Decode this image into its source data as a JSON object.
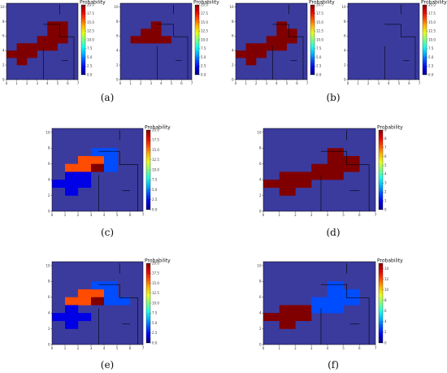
{
  "chart_data": [
    {
      "panel": "(a)",
      "type": "heatmap",
      "grid": {
        "cols": 7,
        "rows": 10
      },
      "xlim": [
        0,
        7
      ],
      "ylim": [
        0,
        10.5
      ],
      "xticks": [
        "0",
        "1",
        "2",
        "3",
        "4",
        "5",
        "6",
        "7"
      ],
      "yticks": [
        "0",
        "2",
        "4",
        "6",
        "8",
        "10"
      ],
      "subplots": [
        {
          "colorbar": {
            "title": "Probability",
            "vmin": 0,
            "vmax": 20.0,
            "ticks": [
              "0.0",
              "2.5",
              "5.0",
              "7.5",
              "10.0",
              "12.5",
              "15.0",
              "17.5",
              "20.0"
            ]
          },
          "cells": [
            {
              "x": 0,
              "y": 3,
              "value": 20
            },
            {
              "x": 1,
              "y": 3,
              "value": 20
            },
            {
              "x": 2,
              "y": 3,
              "value": 20
            },
            {
              "x": 1,
              "y": 2,
              "value": 20
            },
            {
              "x": 1,
              "y": 4,
              "value": 20
            },
            {
              "x": 2,
              "y": 4,
              "value": 20
            },
            {
              "x": 3,
              "y": 4,
              "value": 20
            },
            {
              "x": 4,
              "y": 4,
              "value": 20
            },
            {
              "x": 3,
              "y": 5,
              "value": 20
            },
            {
              "x": 4,
              "y": 5,
              "value": 20
            },
            {
              "x": 5,
              "y": 5,
              "value": 20
            },
            {
              "x": 4,
              "y": 6,
              "value": 20
            },
            {
              "x": 5,
              "y": 6,
              "value": 20
            },
            {
              "x": 4,
              "y": 7,
              "value": 20
            },
            {
              "x": 5,
              "y": 7,
              "value": 20
            }
          ]
        },
        {
          "colorbar": {
            "title": "Probability",
            "vmin": 0,
            "vmax": 20.0,
            "ticks": [
              "0.0",
              "2.5",
              "5.0",
              "7.5",
              "10.0",
              "12.5",
              "15.0",
              "17.5",
              "20.0"
            ]
          },
          "cells": [
            {
              "x": 1,
              "y": 5,
              "value": 20
            },
            {
              "x": 2,
              "y": 5,
              "value": 20
            },
            {
              "x": 3,
              "y": 5,
              "value": 20
            },
            {
              "x": 4,
              "y": 5,
              "value": 20
            },
            {
              "x": 2,
              "y": 6,
              "value": 20
            },
            {
              "x": 3,
              "y": 6,
              "value": 20
            },
            {
              "x": 3,
              "y": 7,
              "value": 20
            }
          ]
        }
      ]
    },
    {
      "panel": "(b)",
      "type": "heatmap",
      "grid": {
        "cols": 7,
        "rows": 10
      },
      "xlim": [
        0,
        7
      ],
      "ylim": [
        0,
        10.5
      ],
      "xticks": [
        "0",
        "1",
        "2",
        "3",
        "4",
        "5",
        "6",
        "7"
      ],
      "yticks": [
        "0",
        "2",
        "4",
        "6",
        "8",
        "10"
      ],
      "subplots": [
        {
          "colorbar": {
            "title": "Probability",
            "vmin": 0,
            "vmax": 20.0,
            "ticks": [
              "0.0",
              "2.5",
              "5.0",
              "7.5",
              "10.0",
              "12.5",
              "15.0",
              "17.5",
              "20.0"
            ]
          },
          "cells": [
            {
              "x": 0,
              "y": 3,
              "value": 20
            },
            {
              "x": 1,
              "y": 3,
              "value": 20
            },
            {
              "x": 2,
              "y": 3,
              "value": 20
            },
            {
              "x": 1,
              "y": 2,
              "value": 20
            },
            {
              "x": 1,
              "y": 4,
              "value": 20
            },
            {
              "x": 2,
              "y": 4,
              "value": 20
            },
            {
              "x": 3,
              "y": 4,
              "value": 20
            },
            {
              "x": 4,
              "y": 4,
              "value": 20
            },
            {
              "x": 3,
              "y": 5,
              "value": 20
            },
            {
              "x": 4,
              "y": 5,
              "value": 20
            },
            {
              "x": 5,
              "y": 5,
              "value": 20
            },
            {
              "x": 4,
              "y": 6,
              "value": 20
            },
            {
              "x": 5,
              "y": 6,
              "value": 20
            },
            {
              "x": 4,
              "y": 7,
              "value": 20
            }
          ]
        },
        {
          "colorbar": {
            "title": "Probability",
            "vmin": 0,
            "vmax": 20.0,
            "ticks": [
              "0.0",
              "2.5",
              "5.0",
              "7.5",
              "10.0",
              "12.5",
              "15.0",
              "17.5",
              "20.0"
            ]
          },
          "cells": []
        }
      ]
    },
    {
      "panel": "(c)",
      "type": "heatmap",
      "grid": {
        "cols": 7,
        "rows": 10
      },
      "xlim": [
        0,
        7
      ],
      "ylim": [
        0,
        10.5
      ],
      "xticks": [
        "0",
        "1",
        "2",
        "3",
        "4",
        "5",
        "6",
        "7"
      ],
      "yticks": [
        "0",
        "2",
        "4",
        "6",
        "8",
        "10"
      ],
      "subplots": [
        {
          "colorbar": {
            "title": "Probability",
            "vmin": 0,
            "vmax": 20.0,
            "ticks": [
              "0.0",
              "2.5",
              "5.0",
              "7.5",
              "10.0",
              "12.5",
              "15.0",
              "17.5",
              "20.0"
            ]
          },
          "cells": [
            {
              "x": 1,
              "y": 5,
              "value": 16
            },
            {
              "x": 2,
              "y": 5,
              "value": 16
            },
            {
              "x": 2,
              "y": 6,
              "value": 16
            },
            {
              "x": 3,
              "y": 6,
              "value": 16
            },
            {
              "x": 3,
              "y": 5,
              "value": 20
            },
            {
              "x": 4,
              "y": 5,
              "value": 4
            },
            {
              "x": 4,
              "y": 6,
              "value": 4
            },
            {
              "x": 4,
              "y": 7,
              "value": 4
            },
            {
              "x": 3,
              "y": 7,
              "value": 4
            },
            {
              "x": 0,
              "y": 3,
              "value": 2
            },
            {
              "x": 1,
              "y": 3,
              "value": 2
            },
            {
              "x": 2,
              "y": 3,
              "value": 2
            },
            {
              "x": 1,
              "y": 2,
              "value": 2
            },
            {
              "x": 1,
              "y": 4,
              "value": 2
            },
            {
              "x": 2,
              "y": 4,
              "value": 2
            }
          ]
        }
      ]
    },
    {
      "panel": "(d)",
      "type": "heatmap",
      "grid": {
        "cols": 7,
        "rows": 10
      },
      "xlim": [
        0,
        7
      ],
      "ylim": [
        0,
        10.5
      ],
      "xticks": [
        "0",
        "1",
        "2",
        "3",
        "4",
        "5",
        "6",
        "7"
      ],
      "yticks": [
        "0",
        "2",
        "4",
        "6",
        "8",
        "10"
      ],
      "subplots": [
        {
          "colorbar": {
            "title": "Probability",
            "vmin": 0,
            "vmax": 9,
            "ticks": [
              "0",
              "1",
              "2",
              "3",
              "4",
              "5",
              "6",
              "7",
              "8",
              "9"
            ]
          },
          "cells": [
            {
              "x": 0,
              "y": 3,
              "value": 9
            },
            {
              "x": 1,
              "y": 3,
              "value": 9
            },
            {
              "x": 2,
              "y": 3,
              "value": 9
            },
            {
              "x": 1,
              "y": 2,
              "value": 9
            },
            {
              "x": 1,
              "y": 4,
              "value": 9
            },
            {
              "x": 2,
              "y": 4,
              "value": 9
            },
            {
              "x": 3,
              "y": 4,
              "value": 9
            },
            {
              "x": 4,
              "y": 4,
              "value": 9
            },
            {
              "x": 3,
              "y": 5,
              "value": 9
            },
            {
              "x": 4,
              "y": 5,
              "value": 9
            },
            {
              "x": 5,
              "y": 5,
              "value": 9
            },
            {
              "x": 4,
              "y": 6,
              "value": 9
            },
            {
              "x": 5,
              "y": 6,
              "value": 9
            },
            {
              "x": 4,
              "y": 7,
              "value": 9
            }
          ]
        }
      ]
    },
    {
      "panel": "(e)",
      "type": "heatmap",
      "grid": {
        "cols": 7,
        "rows": 10
      },
      "xlim": [
        0,
        7
      ],
      "ylim": [
        0,
        10.5
      ],
      "xticks": [
        "0",
        "1",
        "2",
        "3",
        "4",
        "5",
        "6",
        "7"
      ],
      "yticks": [
        "0",
        "2",
        "4",
        "6",
        "8",
        "10"
      ],
      "subplots": [
        {
          "colorbar": {
            "title": "Probability",
            "vmin": 0,
            "vmax": 20.0,
            "ticks": [
              "0.0",
              "2.5",
              "5.0",
              "7.5",
              "10.0",
              "12.5",
              "15.0",
              "17.5",
              "20.0"
            ]
          },
          "cells": [
            {
              "x": 1,
              "y": 5,
              "value": 16
            },
            {
              "x": 2,
              "y": 5,
              "value": 16
            },
            {
              "x": 2,
              "y": 6,
              "value": 16
            },
            {
              "x": 3,
              "y": 6,
              "value": 16
            },
            {
              "x": 3,
              "y": 5,
              "value": 20
            },
            {
              "x": 4,
              "y": 5,
              "value": 4
            },
            {
              "x": 4,
              "y": 6,
              "value": 4
            },
            {
              "x": 4,
              "y": 7,
              "value": 4
            },
            {
              "x": 3,
              "y": 7,
              "value": 4
            },
            {
              "x": 5,
              "y": 5,
              "value": 4
            },
            {
              "x": 0,
              "y": 3,
              "value": 2
            },
            {
              "x": 1,
              "y": 3,
              "value": 2
            },
            {
              "x": 2,
              "y": 3,
              "value": 2
            },
            {
              "x": 1,
              "y": 2,
              "value": 2
            },
            {
              "x": 1,
              "y": 4,
              "value": 2
            }
          ]
        }
      ]
    },
    {
      "panel": "(f)",
      "type": "heatmap",
      "grid": {
        "cols": 7,
        "rows": 10
      },
      "xlim": [
        0,
        7
      ],
      "ylim": [
        0,
        10.5
      ],
      "xticks": [
        "0",
        "1",
        "2",
        "3",
        "4",
        "5",
        "6",
        "7"
      ],
      "yticks": [
        "0",
        "2",
        "4",
        "6",
        "8",
        "10"
      ],
      "subplots": [
        {
          "colorbar": {
            "title": "Probability",
            "vmin": 0,
            "vmax": 15,
            "ticks": [
              "0",
              "2",
              "4",
              "6",
              "8",
              "10",
              "12",
              "14"
            ]
          },
          "cells": [
            {
              "x": 0,
              "y": 3,
              "value": 15
            },
            {
              "x": 1,
              "y": 3,
              "value": 15
            },
            {
              "x": 2,
              "y": 3,
              "value": 15
            },
            {
              "x": 1,
              "y": 2,
              "value": 15
            },
            {
              "x": 1,
              "y": 4,
              "value": 15
            },
            {
              "x": 2,
              "y": 4,
              "value": 15
            },
            {
              "x": 3,
              "y": 4,
              "value": 3
            },
            {
              "x": 4,
              "y": 4,
              "value": 3
            },
            {
              "x": 3,
              "y": 5,
              "value": 3
            },
            {
              "x": 4,
              "y": 5,
              "value": 3
            },
            {
              "x": 5,
              "y": 5,
              "value": 3
            },
            {
              "x": 4,
              "y": 6,
              "value": 3
            },
            {
              "x": 5,
              "y": 6,
              "value": 3
            },
            {
              "x": 4,
              "y": 7,
              "value": 3
            }
          ]
        }
      ]
    }
  ],
  "colors": {
    "background_cell": "#3b3b9e",
    "wall": "#000000"
  }
}
